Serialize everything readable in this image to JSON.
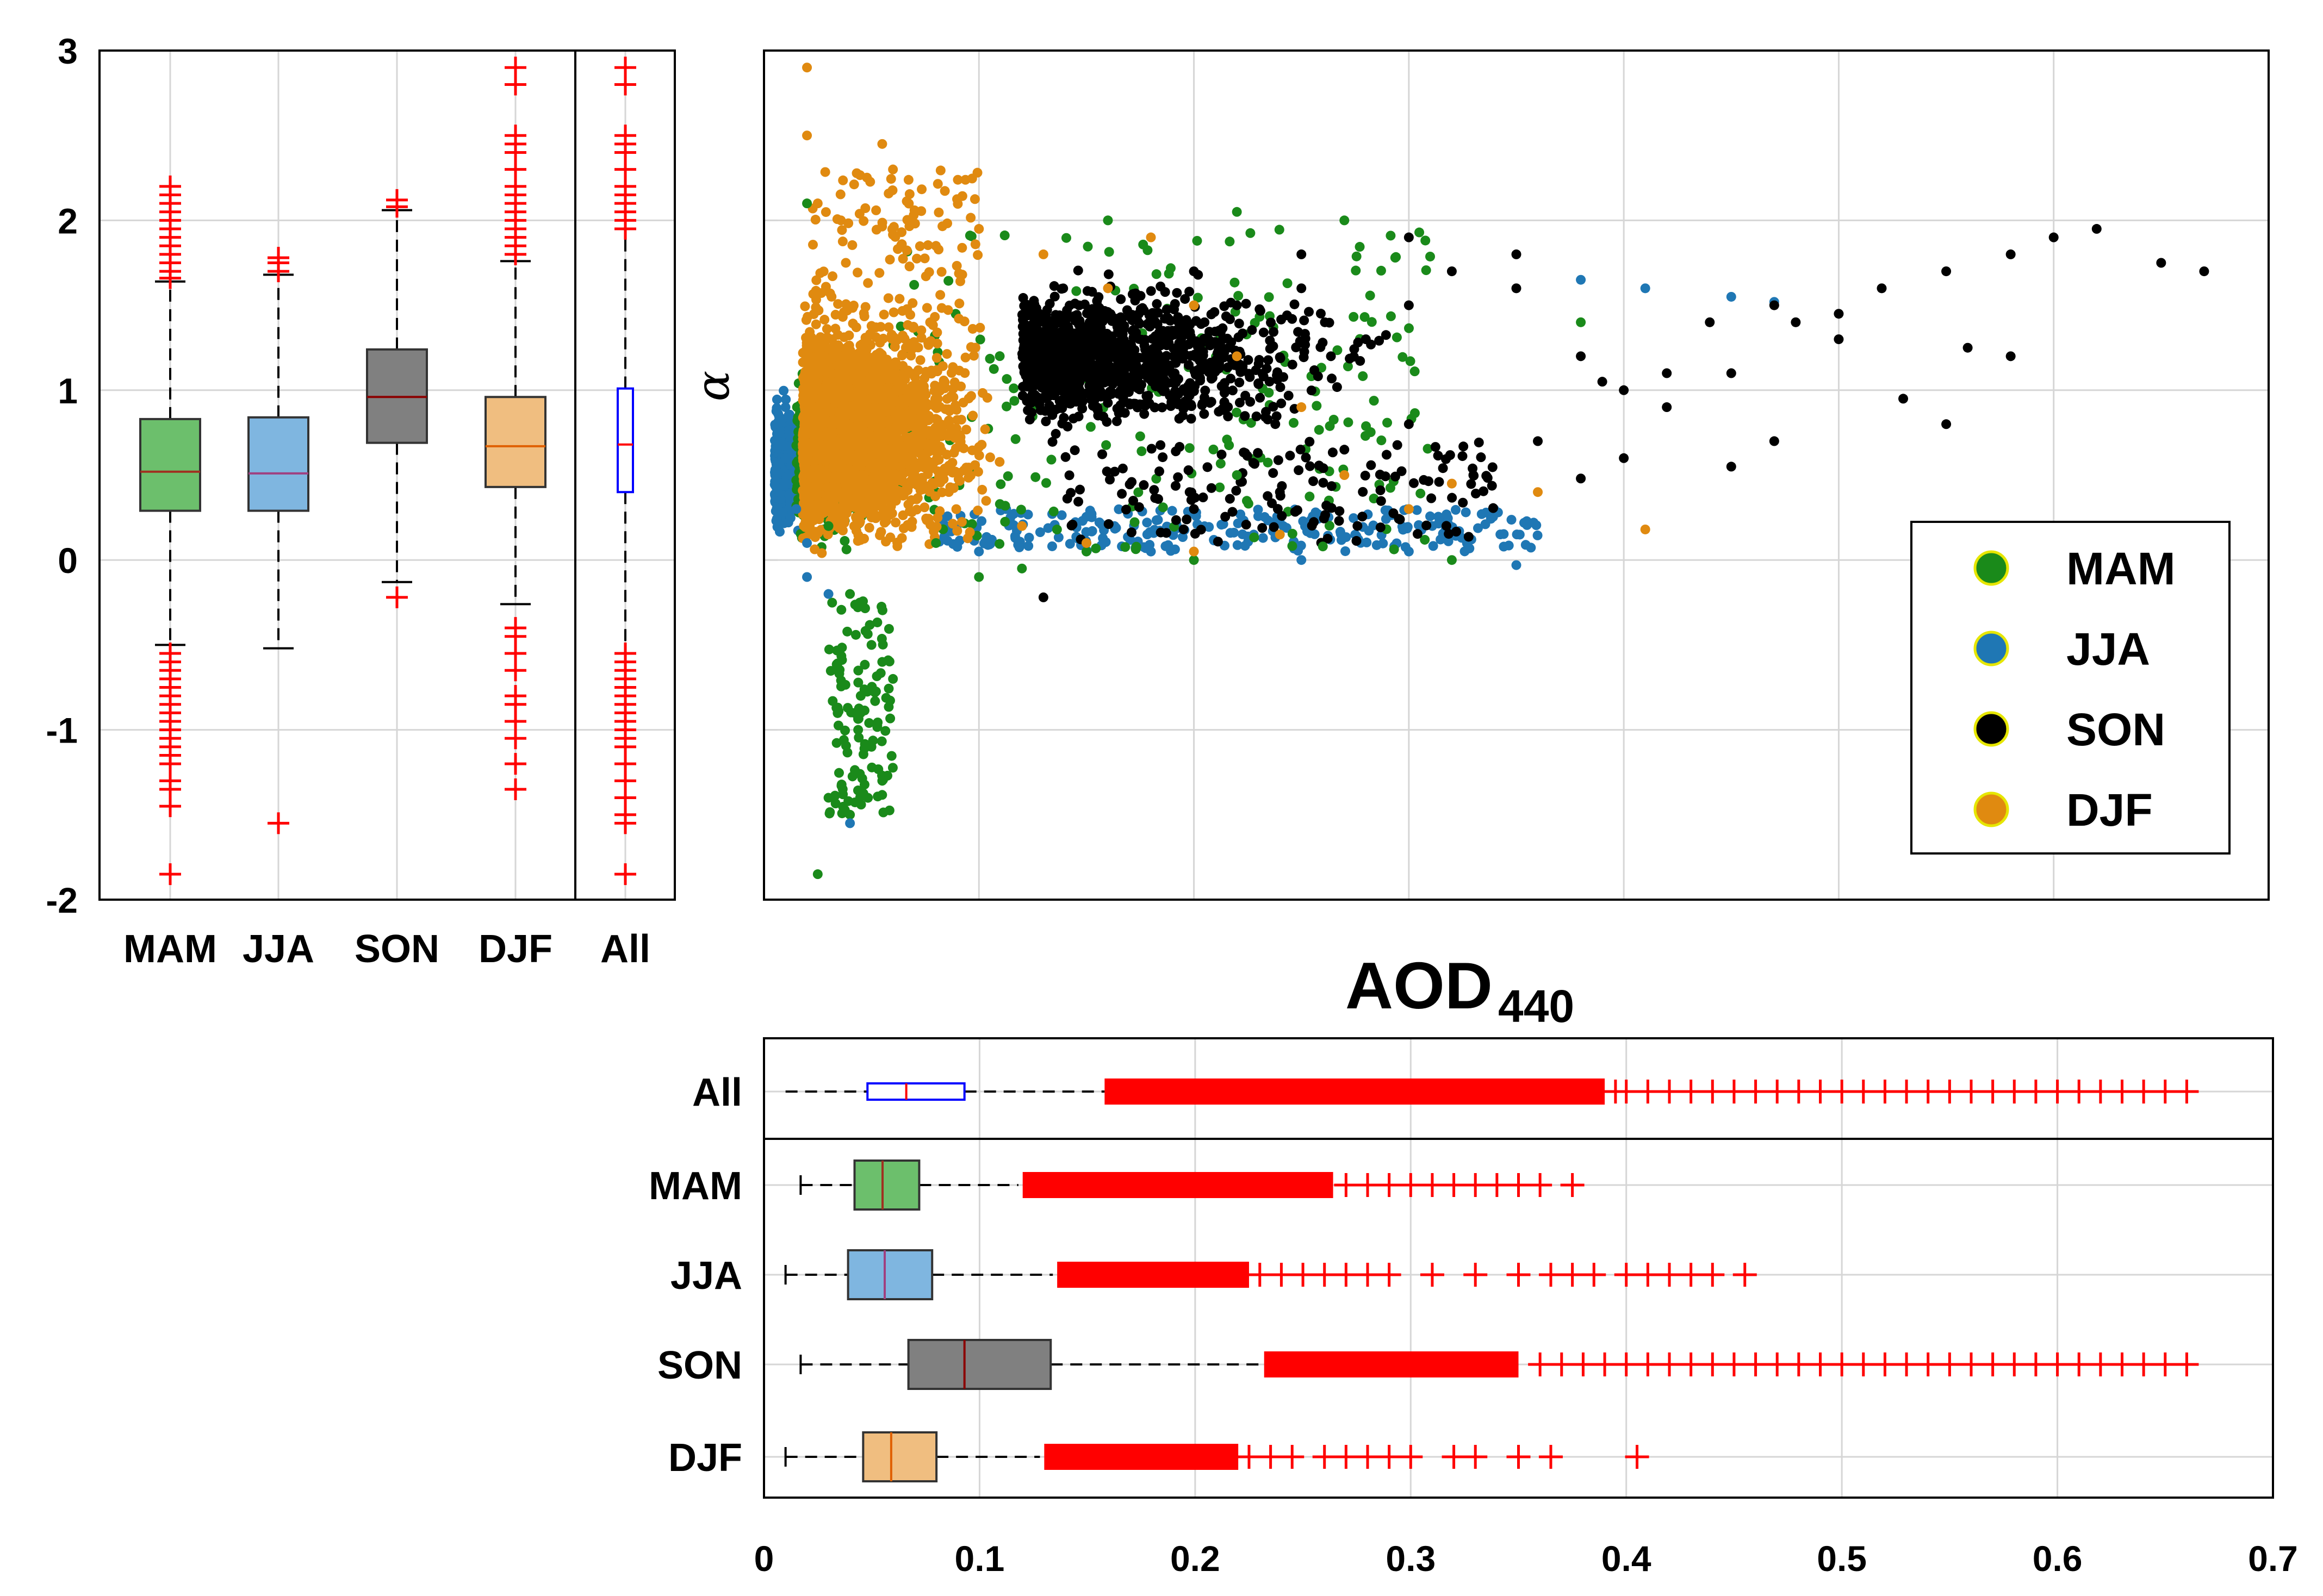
{
  "colors": {
    "MAM": "#1a8a1a",
    "JJA": "#1f77b4",
    "SON": "#000000",
    "DJF": "#e08a10",
    "outlier": "#ff0000",
    "all_box": "#0000ff"
  },
  "chart_data": [
    {
      "id": "alpha-boxplot",
      "type": "boxplot",
      "orientation": "vertical",
      "ylim": [
        -2,
        3
      ],
      "yticks": [
        -2,
        -1,
        0,
        1,
        2,
        3
      ],
      "categories": [
        "MAM",
        "JJA",
        "SON",
        "DJF",
        "All"
      ],
      "boxes": [
        {
          "name": "MAM",
          "q1": 0.29,
          "median": 0.52,
          "q3": 0.83,
          "whisker_low": -0.5,
          "whisker_high": 1.64,
          "fill": "#6cbf6c",
          "outliers": [
            1.66,
            1.7,
            1.75,
            1.8,
            1.85,
            1.9,
            1.95,
            2.0,
            2.05,
            2.1,
            2.15,
            2.2,
            -0.55,
            -0.6,
            -0.65,
            -0.7,
            -0.75,
            -0.8,
            -0.85,
            -0.9,
            -0.95,
            -1.0,
            -1.05,
            -1.1,
            -1.15,
            -1.2,
            -1.3,
            -1.35,
            -1.45,
            -1.85
          ]
        },
        {
          "name": "JJA",
          "q1": 0.29,
          "median": 0.51,
          "q3": 0.84,
          "whisker_low": -0.52,
          "whisker_high": 1.68,
          "fill": "#7fb6e0",
          "outliers": [
            1.7,
            1.75,
            1.78,
            -1.55
          ]
        },
        {
          "name": "SON",
          "q1": 0.69,
          "median": 0.96,
          "q3": 1.24,
          "whisker_low": -0.13,
          "whisker_high": 2.06,
          "fill": "#808080",
          "outliers": [
            2.08,
            2.12,
            -0.22
          ]
        },
        {
          "name": "DJF",
          "q1": 0.43,
          "median": 0.67,
          "q3": 0.96,
          "whisker_low": -0.26,
          "whisker_high": 1.76,
          "fill": "#f0be80",
          "outliers": [
            1.8,
            1.85,
            1.9,
            1.95,
            2.0,
            2.05,
            2.1,
            2.15,
            2.2,
            2.3,
            2.4,
            2.45,
            2.5,
            2.8,
            2.9,
            -0.4,
            -0.45,
            -0.55,
            -0.65,
            -0.8,
            -0.85,
            -0.95,
            -1.05,
            -1.2,
            -1.35
          ]
        },
        {
          "name": "All",
          "q1": 0.4,
          "median": 0.68,
          "q3": 1.01,
          "whisker_low": -0.5,
          "whisker_high": 1.92,
          "fill": "none",
          "outliers": [
            1.95,
            2.0,
            2.05,
            2.1,
            2.15,
            2.2,
            2.3,
            2.4,
            2.45,
            2.5,
            2.8,
            2.9,
            -0.55,
            -0.6,
            -0.65,
            -0.7,
            -0.75,
            -0.8,
            -0.85,
            -0.9,
            -0.95,
            -1.0,
            -1.05,
            -1.1,
            -1.2,
            -1.3,
            -1.4,
            -1.5,
            -1.55,
            -1.85
          ]
        }
      ]
    },
    {
      "id": "scatter-aod-alpha",
      "type": "scatter",
      "xlabel": "AOD",
      "xlabel_sub": "440",
      "ylabel": "α",
      "xlim": [
        0,
        0.7
      ],
      "ylim": [
        -2,
        3
      ],
      "legend": {
        "location": "lower-right",
        "entries": [
          {
            "label": "MAM",
            "color": "#1a8a1a"
          },
          {
            "label": "JJA",
            "color": "#1f77b4"
          },
          {
            "label": "SON",
            "color": "#000000"
          },
          {
            "label": "DJF",
            "color": "#e08a10"
          }
        ]
      },
      "series": [
        {
          "name": "MAM",
          "points": [
            [
              0.03,
              0.2
            ],
            [
              0.04,
              -0.2
            ],
            [
              0.05,
              -0.5
            ],
            [
              0.055,
              -0.6
            ],
            [
              0.06,
              -0.7
            ],
            [
              0.045,
              -0.9
            ],
            [
              0.05,
              -1.1
            ],
            [
              0.055,
              -1.3
            ],
            [
              0.04,
              -1.5
            ],
            [
              0.025,
              -1.85
            ],
            [
              0.03,
              -1.4
            ],
            [
              0.045,
              -0.8
            ],
            [
              0.12,
              -0.05
            ],
            [
              0.2,
              0.0
            ],
            [
              0.22,
              0.5
            ],
            [
              0.26,
              0.08
            ],
            [
              0.32,
              0.0
            ],
            [
              0.16,
              2.0
            ],
            [
              0.22,
              2.05
            ],
            [
              0.27,
              2.0
            ],
            [
              0.38,
              1.4
            ],
            [
              0.02,
              2.1
            ],
            [
              0.08,
              0.1
            ],
            [
              0.1,
              -0.1
            ],
            [
              0.15,
              0.05
            ]
          ]
        },
        {
          "name": "JJA",
          "points": [
            [
              0.01,
              0.9
            ],
            [
              0.01,
              0.6
            ],
            [
              0.015,
              0.3
            ],
            [
              0.02,
              0.1
            ],
            [
              0.02,
              -0.1
            ],
            [
              0.03,
              -0.2
            ],
            [
              0.04,
              -1.55
            ],
            [
              0.1,
              0.05
            ],
            [
              0.18,
              0.05
            ],
            [
              0.25,
              0.0
            ],
            [
              0.3,
              0.05
            ],
            [
              0.35,
              -0.03
            ],
            [
              0.38,
              1.65
            ],
            [
              0.41,
              1.6
            ],
            [
              0.45,
              1.55
            ],
            [
              0.47,
              1.52
            ]
          ]
        },
        {
          "name": "SON",
          "points": [
            [
              0.2,
              1.7
            ],
            [
              0.22,
              1.5
            ],
            [
              0.25,
              1.8
            ],
            [
              0.28,
              1.3
            ],
            [
              0.3,
              1.5
            ],
            [
              0.32,
              1.7
            ],
            [
              0.35,
              1.6
            ],
            [
              0.38,
              1.2
            ],
            [
              0.4,
              1.0
            ],
            [
              0.42,
              1.1
            ],
            [
              0.44,
              1.4
            ],
            [
              0.47,
              1.5
            ],
            [
              0.5,
              1.45
            ],
            [
              0.52,
              1.6
            ],
            [
              0.55,
              1.7
            ],
            [
              0.58,
              1.8
            ],
            [
              0.6,
              1.9
            ],
            [
              0.62,
              1.95
            ],
            [
              0.65,
              1.75
            ],
            [
              0.67,
              1.7
            ],
            [
              0.56,
              1.25
            ],
            [
              0.58,
              1.2
            ],
            [
              0.5,
              1.3
            ],
            [
              0.48,
              1.4
            ],
            [
              0.45,
              1.1
            ],
            [
              0.42,
              0.9
            ],
            [
              0.39,
              1.05
            ],
            [
              0.36,
              0.7
            ],
            [
              0.33,
              0.5
            ],
            [
              0.3,
              0.8
            ],
            [
              0.27,
              0.65
            ],
            [
              0.24,
              0.4
            ],
            [
              0.2,
              0.3
            ],
            [
              0.15,
              0.1
            ],
            [
              0.13,
              -0.22
            ],
            [
              0.25,
              1.6
            ],
            [
              0.3,
              1.9
            ],
            [
              0.35,
              1.8
            ],
            [
              0.53,
              0.95
            ],
            [
              0.55,
              0.8
            ],
            [
              0.47,
              0.7
            ],
            [
              0.4,
              0.6
            ],
            [
              0.38,
              0.48
            ],
            [
              0.45,
              0.55
            ]
          ]
        },
        {
          "name": "DJF",
          "points": [
            [
              0.02,
              2.5
            ],
            [
              0.02,
              2.9
            ],
            [
              0.025,
              2.1
            ],
            [
              0.055,
              2.45
            ],
            [
              0.06,
              2.3
            ],
            [
              0.08,
              1.85
            ],
            [
              0.1,
              1.95
            ],
            [
              0.13,
              1.8
            ],
            [
              0.16,
              1.6
            ],
            [
              0.18,
              1.9
            ],
            [
              0.2,
              1.5
            ],
            [
              0.22,
              1.2
            ],
            [
              0.25,
              0.9
            ],
            [
              0.27,
              0.5
            ],
            [
              0.3,
              0.3
            ],
            [
              0.32,
              0.45
            ],
            [
              0.36,
              0.4
            ],
            [
              0.41,
              0.18
            ],
            [
              0.12,
              0.2
            ],
            [
              0.15,
              0.1
            ],
            [
              0.2,
              0.05
            ],
            [
              0.24,
              0.15
            ]
          ]
        }
      ]
    },
    {
      "id": "aod-boxplot",
      "type": "boxplot",
      "orientation": "horizontal",
      "xlim": [
        0,
        0.7
      ],
      "xticks": [
        0,
        0.1,
        0.2,
        0.3,
        0.4,
        0.5,
        0.6,
        0.7
      ],
      "categories": [
        "All",
        "MAM",
        "JJA",
        "SON",
        "DJF"
      ],
      "boxes": [
        {
          "name": "All",
          "q1": 0.048,
          "median": 0.066,
          "q3": 0.093,
          "whisker_low": 0.01,
          "whisker_high": 0.158,
          "fill": "none",
          "outlier_band": [
            0.158,
            0.39
          ],
          "outliers": [
            0.395,
            0.4,
            0.41,
            0.42,
            0.43,
            0.44,
            0.45,
            0.46,
            0.47,
            0.48,
            0.49,
            0.5,
            0.51,
            0.52,
            0.53,
            0.54,
            0.55,
            0.56,
            0.57,
            0.58,
            0.59,
            0.6,
            0.61,
            0.62,
            0.63,
            0.64,
            0.65,
            0.66
          ]
        },
        {
          "name": "MAM",
          "q1": 0.042,
          "median": 0.055,
          "q3": 0.072,
          "whisker_low": 0.017,
          "whisker_high": 0.118,
          "fill": "#6cbf6c",
          "outlier_band": [
            0.12,
            0.264
          ],
          "outliers": [
            0.27,
            0.28,
            0.29,
            0.3,
            0.31,
            0.32,
            0.33,
            0.34,
            0.35,
            0.36,
            0.375
          ]
        },
        {
          "name": "JJA",
          "q1": 0.039,
          "median": 0.056,
          "q3": 0.078,
          "whisker_low": 0.01,
          "whisker_high": 0.134,
          "fill": "#7fb6e0",
          "outlier_band": [
            0.136,
            0.225
          ],
          "outliers": [
            0.23,
            0.24,
            0.25,
            0.26,
            0.27,
            0.28,
            0.29,
            0.31,
            0.33,
            0.35,
            0.365,
            0.375,
            0.385,
            0.4,
            0.41,
            0.42,
            0.43,
            0.44,
            0.455
          ]
        },
        {
          "name": "SON",
          "q1": 0.067,
          "median": 0.093,
          "q3": 0.133,
          "whisker_low": 0.017,
          "whisker_high": 0.23,
          "fill": "#808080",
          "outlier_band": [
            0.232,
            0.35
          ],
          "outliers": [
            0.36,
            0.37,
            0.38,
            0.39,
            0.4,
            0.41,
            0.42,
            0.43,
            0.44,
            0.45,
            0.46,
            0.47,
            0.48,
            0.49,
            0.5,
            0.51,
            0.52,
            0.53,
            0.54,
            0.55,
            0.56,
            0.57,
            0.58,
            0.59,
            0.6,
            0.61,
            0.62,
            0.63,
            0.64,
            0.65,
            0.66
          ]
        },
        {
          "name": "DJF",
          "q1": 0.046,
          "median": 0.059,
          "q3": 0.08,
          "whisker_low": 0.01,
          "whisker_high": 0.128,
          "fill": "#f0be80",
          "outlier_band": [
            0.13,
            0.22
          ],
          "outliers": [
            0.225,
            0.235,
            0.245,
            0.26,
            0.27,
            0.28,
            0.29,
            0.3,
            0.32,
            0.33,
            0.35,
            0.365,
            0.405
          ]
        }
      ]
    }
  ]
}
